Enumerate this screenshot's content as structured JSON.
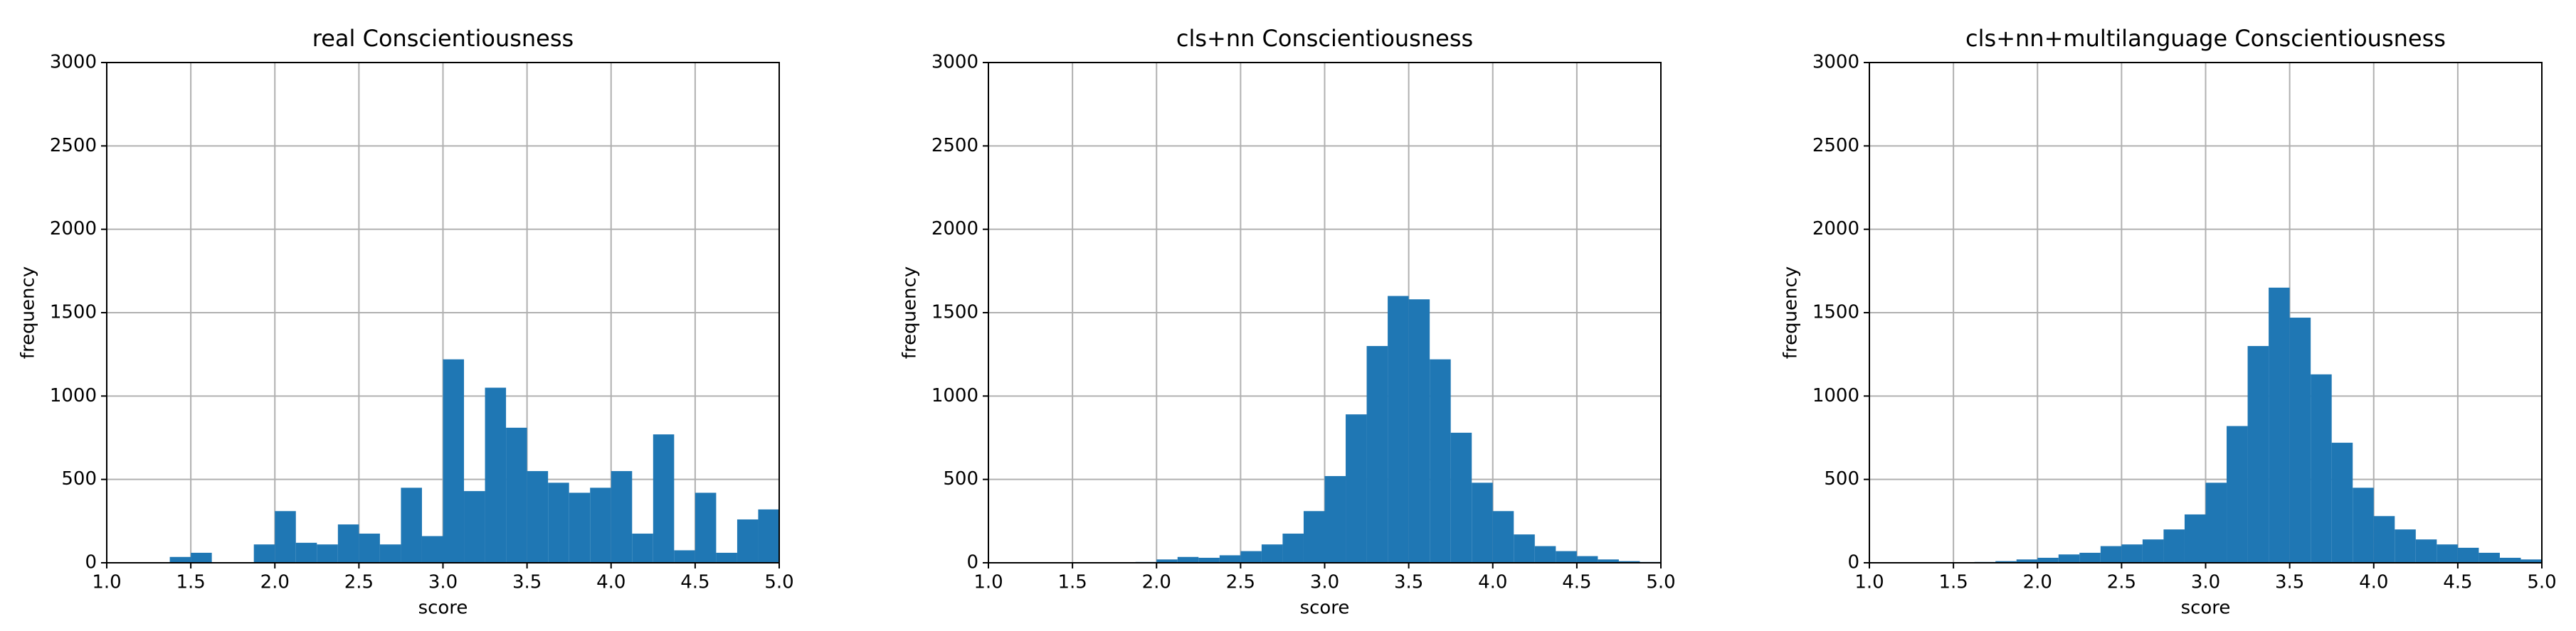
{
  "chart_data": [
    {
      "type": "histogram",
      "title": "real Conscientiousness",
      "x_label": "score",
      "y_label": "frequency",
      "color": "#1f77b4",
      "grid": true,
      "bins": [
        1.0,
        1.125,
        1.25,
        1.375,
        1.5,
        1.625,
        1.75,
        1.875,
        2.0,
        2.125,
        2.25,
        2.375,
        2.5,
        2.625,
        2.75,
        2.875,
        3.0,
        3.125,
        3.25,
        3.375,
        3.5,
        3.625,
        3.75,
        3.875,
        4.0,
        4.125,
        4.25,
        4.375,
        4.5,
        4.625,
        4.75,
        4.875,
        5.0
      ],
      "values": [
        0,
        0,
        0,
        35,
        60,
        0,
        0,
        110,
        310,
        120,
        110,
        230,
        175,
        110,
        450,
        160,
        1220,
        430,
        1050,
        810,
        550,
        480,
        420,
        450,
        550,
        175,
        770,
        75,
        420,
        60,
        260,
        320
      ],
      "xlim": [
        1.0,
        5.0
      ],
      "ylim": [
        0,
        3000
      ],
      "xticks": [
        {
          "value": 1.0,
          "label": "1.0"
        },
        1.5,
        {
          "value": 2.0,
          "label": "2.0"
        },
        2.5,
        {
          "value": 3.0,
          "label": "3.0"
        },
        3.5,
        {
          "value": 4.0,
          "label": "4.0"
        },
        4.5,
        {
          "value": 5.0,
          "label": "5.0"
        }
      ],
      "yticks": [
        0,
        500,
        1000,
        1500,
        2000,
        2500,
        3000
      ]
    },
    {
      "type": "histogram",
      "title": "cls+nn Conscientiousness",
      "x_label": "score",
      "y_label": "frequency",
      "color": "#1f77b4",
      "grid": true,
      "bins": [
        1.0,
        1.125,
        1.25,
        1.375,
        1.5,
        1.625,
        1.75,
        1.875,
        2.0,
        2.125,
        2.25,
        2.375,
        2.5,
        2.625,
        2.75,
        2.875,
        3.0,
        3.125,
        3.25,
        3.375,
        3.5,
        3.625,
        3.75,
        3.875,
        4.0,
        4.125,
        4.25,
        4.375,
        4.5,
        4.625,
        4.75,
        4.875,
        5.0
      ],
      "values": [
        0,
        0,
        0,
        0,
        0,
        0,
        0,
        5,
        20,
        35,
        30,
        45,
        70,
        110,
        175,
        310,
        520,
        890,
        1300,
        1600,
        1580,
        1220,
        780,
        480,
        310,
        170,
        100,
        70,
        40,
        20,
        10,
        5
      ],
      "xlim": [
        1.0,
        5.0
      ],
      "ylim": [
        0,
        3000
      ],
      "xticks": [
        {
          "value": 1.0,
          "label": "1.0"
        },
        1.5,
        {
          "value": 2.0,
          "label": "2.0"
        },
        2.5,
        {
          "value": 3.0,
          "label": "3.0"
        },
        3.5,
        {
          "value": 4.0,
          "label": "4.0"
        },
        4.5,
        {
          "value": 5.0,
          "label": "5.0"
        }
      ],
      "yticks": [
        0,
        500,
        1000,
        1500,
        2000,
        2500,
        3000
      ]
    },
    {
      "type": "histogram",
      "title": "cls+nn+multilanguage Conscientiousness",
      "x_label": "score",
      "y_label": "frequency",
      "color": "#1f77b4",
      "grid": true,
      "bins": [
        1.0,
        1.125,
        1.25,
        1.375,
        1.5,
        1.625,
        1.75,
        1.875,
        2.0,
        2.125,
        2.25,
        2.375,
        2.5,
        2.625,
        2.75,
        2.875,
        3.0,
        3.125,
        3.25,
        3.375,
        3.5,
        3.625,
        3.75,
        3.875,
        4.0,
        4.125,
        4.25,
        4.375,
        4.5,
        4.625,
        4.75,
        4.875,
        5.0
      ],
      "values": [
        0,
        0,
        0,
        0,
        0,
        5,
        10,
        20,
        30,
        50,
        60,
        100,
        110,
        140,
        200,
        290,
        480,
        820,
        1300,
        1650,
        1470,
        1130,
        720,
        450,
        280,
        200,
        140,
        110,
        90,
        60,
        30,
        20
      ],
      "xlim": [
        1.0,
        5.0
      ],
      "ylim": [
        0,
        3000
      ],
      "xticks": [
        {
          "value": 1.0,
          "label": "1.0"
        },
        1.5,
        {
          "value": 2.0,
          "label": "2.0"
        },
        2.5,
        {
          "value": 3.0,
          "label": "3.0"
        },
        3.5,
        {
          "value": 4.0,
          "label": "4.0"
        },
        4.5,
        {
          "value": 5.0,
          "label": "5.0"
        }
      ],
      "yticks": [
        0,
        500,
        1000,
        1500,
        2000,
        2500,
        3000
      ]
    }
  ]
}
